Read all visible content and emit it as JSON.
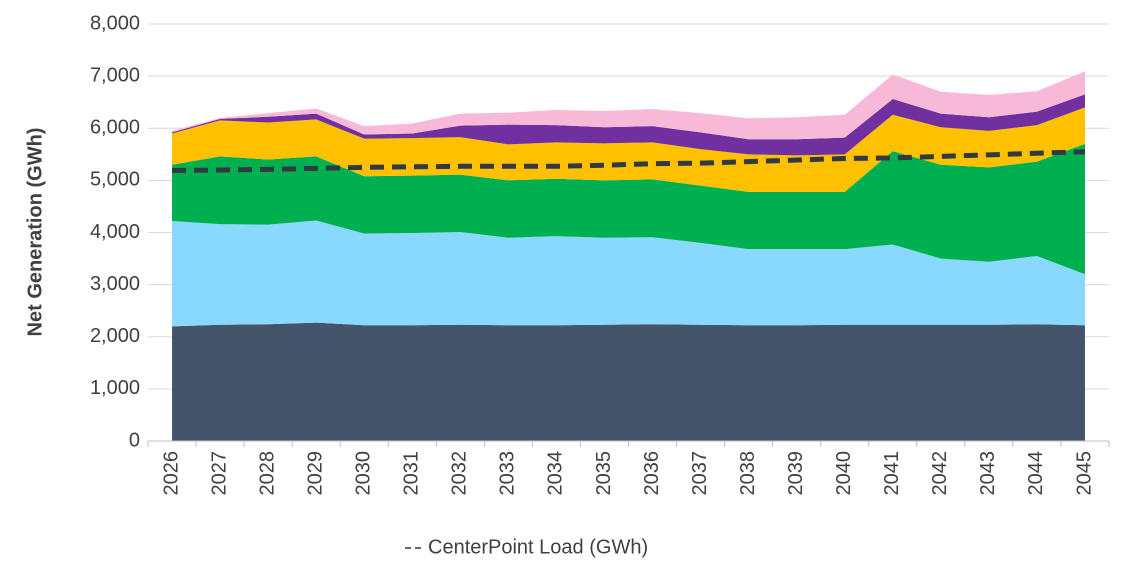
{
  "chart_data": {
    "type": "area",
    "stacked": true,
    "y_label": "Net Generation (GWh)",
    "categories": [
      "2026",
      "2027",
      "2028",
      "2029",
      "2030",
      "2031",
      "2032",
      "2033",
      "2034",
      "2035",
      "2036",
      "2037",
      "2038",
      "2039",
      "2040",
      "2041",
      "2042",
      "2043",
      "2044",
      "2045"
    ],
    "ylim": [
      0,
      8000
    ],
    "yticks": [
      0,
      {
        "value": 1000,
        "label": "1,000"
      },
      {
        "value": 2000,
        "label": "2,000"
      },
      {
        "value": 3000,
        "label": "3,000"
      },
      {
        "value": 4000,
        "label": "4,000"
      },
      {
        "value": 5000,
        "label": "5,000"
      },
      {
        "value": 6000,
        "label": "6,000"
      },
      {
        "value": 7000,
        "label": "7,000"
      },
      {
        "value": 8000,
        "label": "8,000"
      }
    ],
    "grid": true,
    "legend": "bottom",
    "series": [
      {
        "color": "#44546a",
        "values": [
          2200,
          2230,
          2240,
          2270,
          2220,
          2220,
          2230,
          2220,
          2220,
          2230,
          2240,
          2230,
          2220,
          2220,
          2230,
          2230,
          2230,
          2230,
          2240,
          2220
        ]
      },
      {
        "color": "#89d9ff",
        "values": [
          2020,
          1930,
          1910,
          1960,
          1760,
          1770,
          1780,
          1680,
          1710,
          1670,
          1670,
          1570,
          1460,
          1460,
          1450,
          1540,
          1270,
          1210,
          1310,
          980
        ]
      },
      {
        "color": "#00b050",
        "values": [
          1080,
          1300,
          1250,
          1230,
          1100,
          1100,
          1100,
          1100,
          1100,
          1100,
          1110,
          1100,
          1100,
          1100,
          1100,
          1790,
          1800,
          1810,
          1810,
          2500
        ]
      },
      {
        "color": "#ffc000",
        "values": [
          600,
          690,
          710,
          710,
          720,
          720,
          720,
          690,
          700,
          710,
          710,
          700,
          720,
          700,
          720,
          700,
          720,
          700,
          700,
          700
        ]
      },
      {
        "color": "#7030a0",
        "values": [
          20,
          30,
          110,
          110,
          80,
          90,
          220,
          380,
          330,
          310,
          310,
          320,
          290,
          310,
          320,
          300,
          260,
          260,
          260,
          250
        ]
      },
      {
        "color": "#f8b9d8",
        "values": [
          30,
          20,
          70,
          100,
          160,
          190,
          230,
          230,
          290,
          310,
          330,
          370,
          400,
          420,
          440,
          470,
          420,
          430,
          390,
          440
        ]
      },
      {
        "name": "CenterPoint Load (GWh)",
        "type": "line",
        "line_style": "dashed",
        "color": "#2f3b40",
        "values": [
          5190,
          5200,
          5210,
          5230,
          5250,
          5260,
          5270,
          5270,
          5270,
          5290,
          5320,
          5330,
          5360,
          5390,
          5420,
          5430,
          5460,
          5490,
          5520,
          5550
        ]
      }
    ]
  }
}
